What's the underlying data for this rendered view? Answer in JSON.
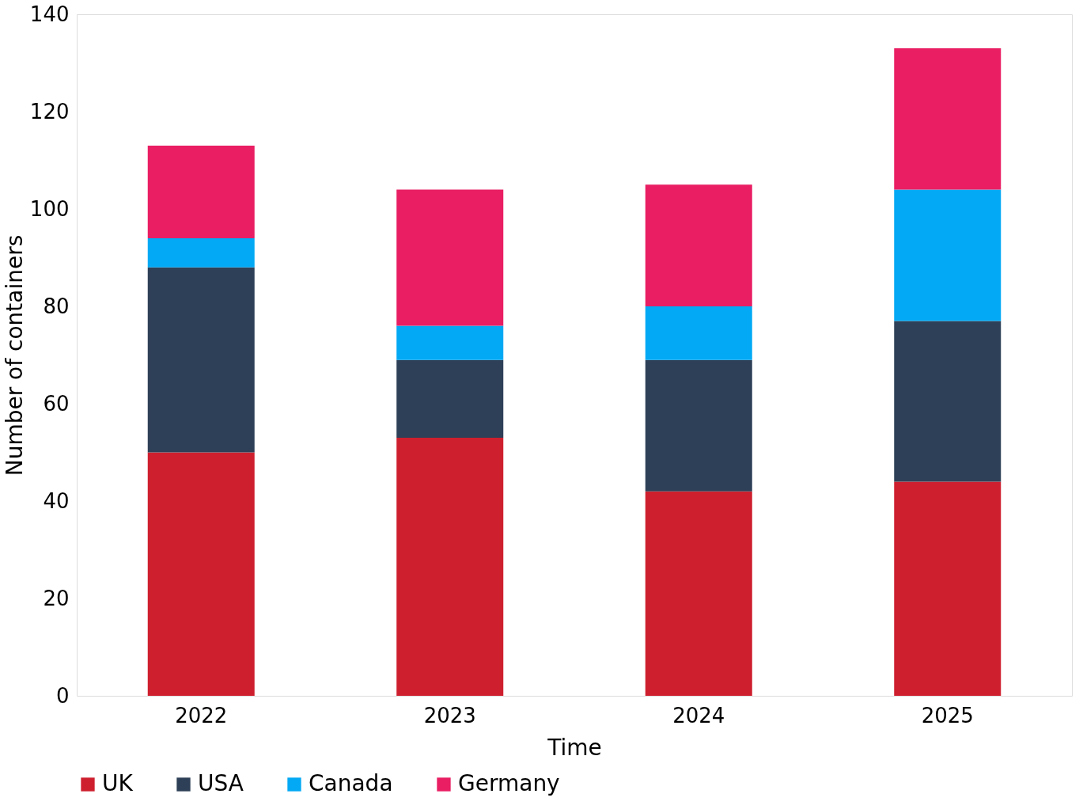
{
  "chart_data": {
    "type": "bar",
    "stacked": true,
    "xlabel": "Time",
    "ylabel": "Number of containers",
    "categories": [
      "2022",
      "2023",
      "2024",
      "2025"
    ],
    "series": [
      {
        "name": "UK",
        "color": "#ce1f2e",
        "values": [
          50,
          53,
          42,
          44
        ]
      },
      {
        "name": "USA",
        "color": "#2e4057",
        "values": [
          38,
          16,
          27,
          33
        ]
      },
      {
        "name": "Canada",
        "color": "#03a9f4",
        "values": [
          6,
          7,
          11,
          27
        ]
      },
      {
        "name": "Germany",
        "color": "#e91e63",
        "values": [
          19,
          28,
          25,
          29
        ]
      }
    ],
    "ylim": [
      0,
      140
    ],
    "yticks": [
      0,
      20,
      40,
      60,
      80,
      100,
      120,
      140
    ],
    "grid": false,
    "legend": "bottom"
  }
}
